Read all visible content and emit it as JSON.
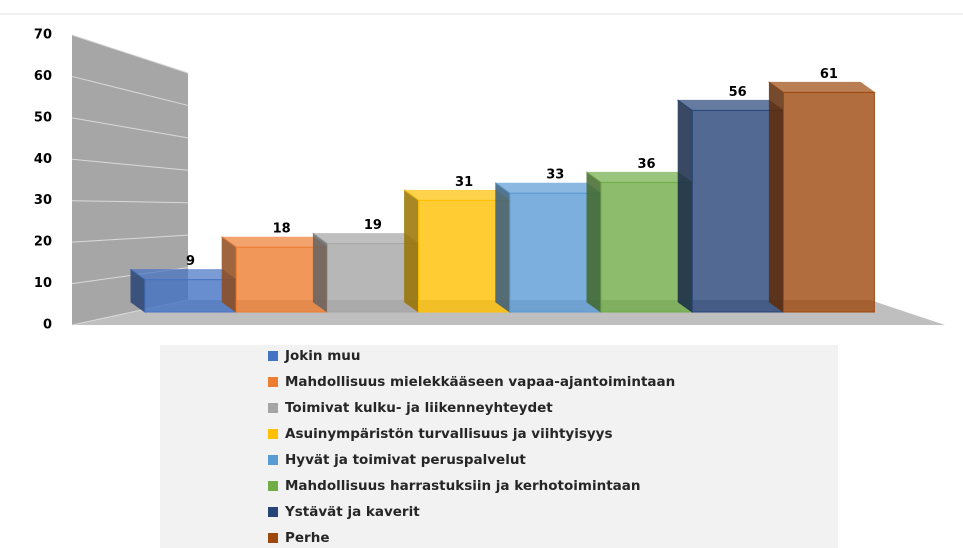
{
  "chart_data": {
    "type": "bar3d",
    "series": [
      {
        "name": "Jokin muu",
        "color": "#4472c4",
        "values": [
          9
        ]
      },
      {
        "name": "Mahdollisuus mielekkääseen vapaa-ajantoimintaan",
        "color": "#ed7d31",
        "values": [
          18
        ]
      },
      {
        "name": "Toimivat kulku- ja liikenneyhteydet",
        "color": "#a5a5a5",
        "values": [
          19
        ]
      },
      {
        "name": "Asuinympäristön turvallisuus ja viihtyisyys",
        "color": "#ffc000",
        "values": [
          31
        ]
      },
      {
        "name": "Hyvät ja toimivat peruspalvelut",
        "color": "#5b9bd5",
        "values": [
          33
        ]
      },
      {
        "name": "Mahdollisuus harrastuksiin ja kerhotoimintaan",
        "color": "#70ad47",
        "values": [
          36
        ]
      },
      {
        "name": "Ystävät ja kaverit",
        "color": "#264478",
        "values": [
          56
        ]
      },
      {
        "name": "Perhe",
        "color": "#9e480e",
        "values": [
          61
        ]
      }
    ],
    "ylim": [
      0,
      70
    ],
    "yticks": [
      0,
      10,
      20,
      30,
      40,
      50,
      60,
      70
    ],
    "grid": true,
    "legend": "bottom"
  }
}
